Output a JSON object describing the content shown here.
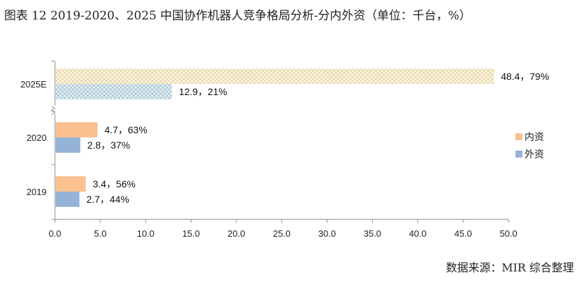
{
  "title": "图表 12 2019-2020、2025 中国协作机器人竞争格局分析-分内外资（单位：千台，%）",
  "source": "数据来源：MIR 综合整理",
  "colors": {
    "domestic": "#FAC090",
    "foreign": "#95B3D7",
    "domestic_pattern_bg": "#FFF8E8",
    "domestic_pattern_line": "#E6D6A8",
    "foreign_pattern_bg": "#EAF3F7",
    "foreign_pattern_line": "#A9C8D6"
  },
  "chart_data": {
    "type": "bar",
    "orientation": "horizontal",
    "categories": [
      "2019",
      "2020",
      "2025E"
    ],
    "series": [
      {
        "name": "内资",
        "values": [
          3.4,
          4.7,
          48.4
        ],
        "labels": [
          "3.4，56%",
          "4.7，63%",
          "48.4，79%"
        ]
      },
      {
        "name": "外资",
        "values": [
          2.7,
          2.8,
          12.9
        ],
        "labels": [
          "2.7，44%",
          "2.8，37%",
          "12.9，21%"
        ]
      }
    ],
    "xlim": [
      0,
      50
    ],
    "xticks": [
      "0.0",
      "5.0",
      "10.0",
      "15.0",
      "20.0",
      "25.0",
      "30.0",
      "35.0",
      "40.0",
      "45.0",
      "50.0"
    ],
    "grid": false,
    "legend_position": "right",
    "axis_break": "between 2020 and 2025E",
    "patterned_category": "2025E"
  }
}
